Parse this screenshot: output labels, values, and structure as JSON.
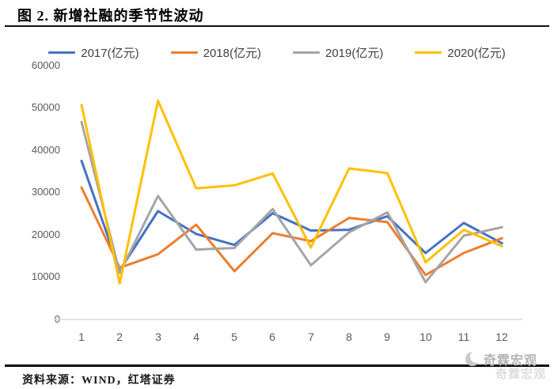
{
  "title": "图 2. 新增社融的季节性波动",
  "footer": {
    "source_label": "资料来源：WIND，红塔证券"
  },
  "watermark": {
    "text": "奇霖宏观"
  },
  "chart_data": {
    "type": "line",
    "title": "图 2. 新增社融的季节性波动",
    "xlabel": "",
    "ylabel": "",
    "unit": "亿元",
    "x": [
      1,
      2,
      3,
      4,
      5,
      6,
      7,
      8,
      9,
      10,
      11,
      12
    ],
    "y_ticks": [
      0,
      10000,
      20000,
      30000,
      40000,
      50000,
      60000
    ],
    "ylim": [
      0,
      60000
    ],
    "grid": false,
    "legend_position": "top",
    "series": [
      {
        "name": "2017(亿元)",
        "color": "#4472C4",
        "values": [
          37500,
          11600,
          25600,
          20200,
          17600,
          25100,
          21000,
          21200,
          24400,
          15700,
          22800,
          18000
        ]
      },
      {
        "name": "2018(亿元)",
        "color": "#ED7D31",
        "values": [
          31200,
          12200,
          15400,
          22400,
          11400,
          20400,
          18500,
          24000,
          23000,
          10500,
          15700,
          19200
        ]
      },
      {
        "name": "2019(亿元)",
        "color": "#A5A5A5",
        "values": [
          46700,
          11000,
          29200,
          16500,
          16900,
          26100,
          12800,
          20600,
          25300,
          8800,
          19800,
          21800
        ]
      },
      {
        "name": "2020(亿元)",
        "color": "#FFC000",
        "values": [
          50700,
          8500,
          51700,
          31000,
          31700,
          34500,
          17000,
          35700,
          34600,
          13500,
          21200,
          17300
        ]
      }
    ]
  }
}
